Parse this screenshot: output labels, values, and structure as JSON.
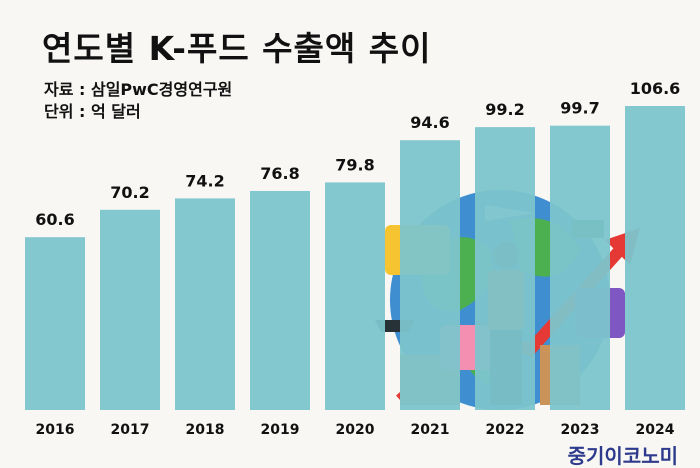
{
  "chart_data": {
    "type": "bar",
    "title": "연도별 K-푸드 수출액 추이",
    "source": "자료 : 삼일PwC경영연구원",
    "unit": "단위 : 억 달러",
    "categories": [
      "2016",
      "2017",
      "2018",
      "2019",
      "2020",
      "2021",
      "2022",
      "2023",
      "2024"
    ],
    "values": [
      60.6,
      70.2,
      74.2,
      76.8,
      79.8,
      94.6,
      99.2,
      99.7,
      106.6
    ],
    "ylim": [
      0,
      110
    ],
    "grid": false,
    "bar_color": "#7cc4cc",
    "xlabel": "",
    "ylabel": ""
  },
  "logo": "중기이코노미"
}
